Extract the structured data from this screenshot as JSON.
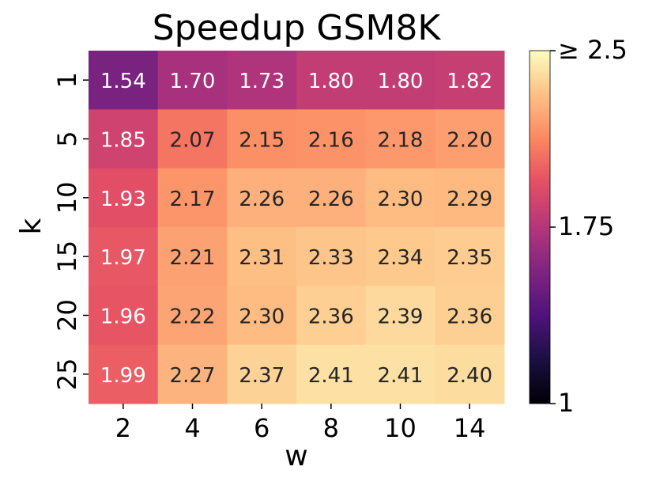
{
  "chart_data": {
    "type": "heatmap",
    "title": "Speedup GSM8K",
    "xlabel": "w",
    "ylabel": "k",
    "x_categories": [
      "2",
      "4",
      "6",
      "8",
      "10",
      "14"
    ],
    "y_categories": [
      "1",
      "5",
      "10",
      "15",
      "20",
      "25"
    ],
    "values": [
      [
        1.54,
        1.7,
        1.73,
        1.8,
        1.8,
        1.82
      ],
      [
        1.85,
        2.07,
        2.15,
        2.16,
        2.18,
        2.2
      ],
      [
        1.93,
        2.17,
        2.26,
        2.26,
        2.3,
        2.29
      ],
      [
        1.97,
        2.21,
        2.31,
        2.33,
        2.34,
        2.35
      ],
      [
        1.96,
        2.22,
        2.3,
        2.36,
        2.39,
        2.36
      ],
      [
        1.99,
        2.27,
        2.37,
        2.41,
        2.41,
        2.4
      ]
    ],
    "colorbar": {
      "colormap": "magma",
      "vmin": 1,
      "vmax": 2.5,
      "ticks": [
        {
          "value": 2.5,
          "label": "≥ 2.5"
        },
        {
          "value": 1.75,
          "label": "1.75"
        },
        {
          "value": 1,
          "label": "1"
        }
      ]
    },
    "grid": false,
    "legend": "colorbar right"
  }
}
